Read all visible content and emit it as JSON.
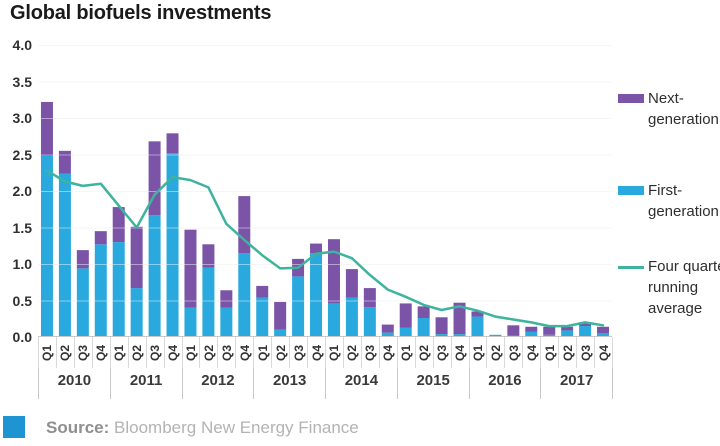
{
  "title": "Global biofuels investments",
  "legend": [
    {
      "name": "Next-generation",
      "type": "box",
      "color": "#7b54a8"
    },
    {
      "name": "First-generation",
      "type": "box",
      "color": "#29a9dd"
    },
    {
      "name": "Four quarter running average",
      "type": "line",
      "color": "#3eb39e"
    }
  ],
  "source": {
    "label": "Source:",
    "text": "Bloomberg New Energy Finance",
    "icon_color": "#1e94d2"
  },
  "chart_data": {
    "type": "bar",
    "stacked": true,
    "title": "Global biofuels investments",
    "ylim": [
      0,
      4
    ],
    "ytick_step": 0.5,
    "yticks": [
      "4.0",
      "3.5",
      "3.0",
      "2.5",
      "2.0",
      "1.5",
      "1.0",
      "0.5",
      "0.0"
    ],
    "grid": "horizontal-faint",
    "legend_position": "right",
    "years": [
      "2010",
      "2011",
      "2012",
      "2013",
      "2014",
      "2015",
      "2016",
      "2017"
    ],
    "quarter_labels": [
      "Q1",
      "Q2",
      "Q3",
      "Q4",
      "Q1",
      "Q2",
      "Q3",
      "Q4",
      "Q1",
      "Q2",
      "Q3",
      "Q4",
      "Q1",
      "Q2",
      "Q3",
      "Q4",
      "Q1",
      "Q2",
      "Q3",
      "Q4",
      "Q1",
      "Q2",
      "Q3",
      "Q4",
      "Q1",
      "Q2",
      "Q3",
      "Q4",
      "Q1",
      "Q2",
      "Q3",
      "Q4"
    ],
    "series": [
      {
        "name": "First-generation",
        "kind": "bar",
        "color": "#29a9dd",
        "values": [
          2.48,
          2.24,
          0.94,
          1.27,
          1.3,
          0.67,
          1.67,
          2.52,
          0.4,
          0.95,
          0.4,
          1.15,
          0.54,
          0.1,
          0.83,
          1.15,
          0.46,
          0.54,
          0.41,
          0.06,
          0.13,
          0.26,
          0.04,
          0.04,
          0.28,
          0.03,
          0.02,
          0.07,
          0.03,
          0.09,
          0.15,
          0.05
        ]
      },
      {
        "name": "Next-generation",
        "kind": "bar",
        "color": "#7b54a8",
        "values": [
          0.74,
          0.31,
          0.25,
          0.18,
          0.48,
          0.84,
          1.01,
          0.27,
          1.07,
          0.32,
          0.24,
          0.78,
          0.16,
          0.38,
          0.24,
          0.13,
          0.88,
          0.39,
          0.26,
          0.11,
          0.33,
          0.16,
          0.23,
          0.43,
          0.07,
          0.0,
          0.14,
          0.07,
          0.11,
          0.05,
          0.05,
          0.09
        ]
      },
      {
        "name": "Four quarter running average",
        "kind": "line",
        "color": "#3eb39e",
        "values": [
          2.28,
          2.13,
          2.07,
          2.1,
          1.8,
          1.5,
          1.95,
          2.19,
          2.15,
          2.05,
          1.55,
          1.33,
          1.12,
          0.94,
          0.95,
          1.14,
          1.17,
          1.08,
          0.85,
          0.65,
          0.55,
          0.44,
          0.37,
          0.42,
          0.36,
          0.28,
          0.24,
          0.2,
          0.15,
          0.15,
          0.2,
          0.16
        ]
      }
    ]
  }
}
